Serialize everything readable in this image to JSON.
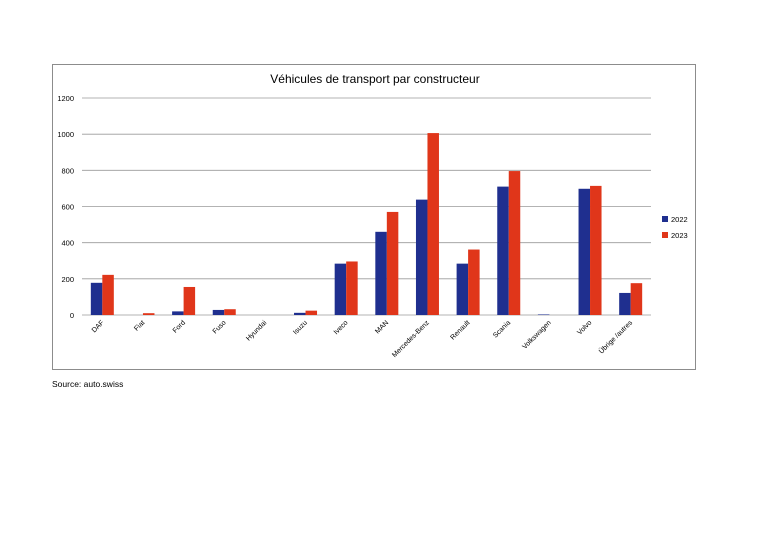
{
  "source": "Source: auto.swiss",
  "chart_data": {
    "type": "bar",
    "title": "Véhicules de transport par constructeur",
    "xlabel": "",
    "ylabel": "",
    "ylim": [
      0,
      1200
    ],
    "yticks": [
      0,
      200,
      400,
      600,
      800,
      1000,
      1200
    ],
    "grid": true,
    "legend_position": "right",
    "categories": [
      "DAF",
      "Fiat",
      "Ford",
      "Fuso",
      "Hyundai",
      "Isuzu",
      "Iveco",
      "MAN",
      "Mercedes-Benz",
      "Renault",
      "Scania",
      "Volkswagen",
      "Volvo",
      "Übrige /autres"
    ],
    "series": [
      {
        "name": "2022",
        "color": "#1f2f8f",
        "values": [
          178,
          0,
          20,
          28,
          0,
          12,
          284,
          460,
          638,
          284,
          710,
          3,
          698,
          122
        ]
      },
      {
        "name": "2023",
        "color": "#e0361a",
        "values": [
          222,
          10,
          155,
          32,
          0,
          24,
          296,
          570,
          1006,
          362,
          796,
          0,
          714,
          176
        ]
      }
    ]
  }
}
